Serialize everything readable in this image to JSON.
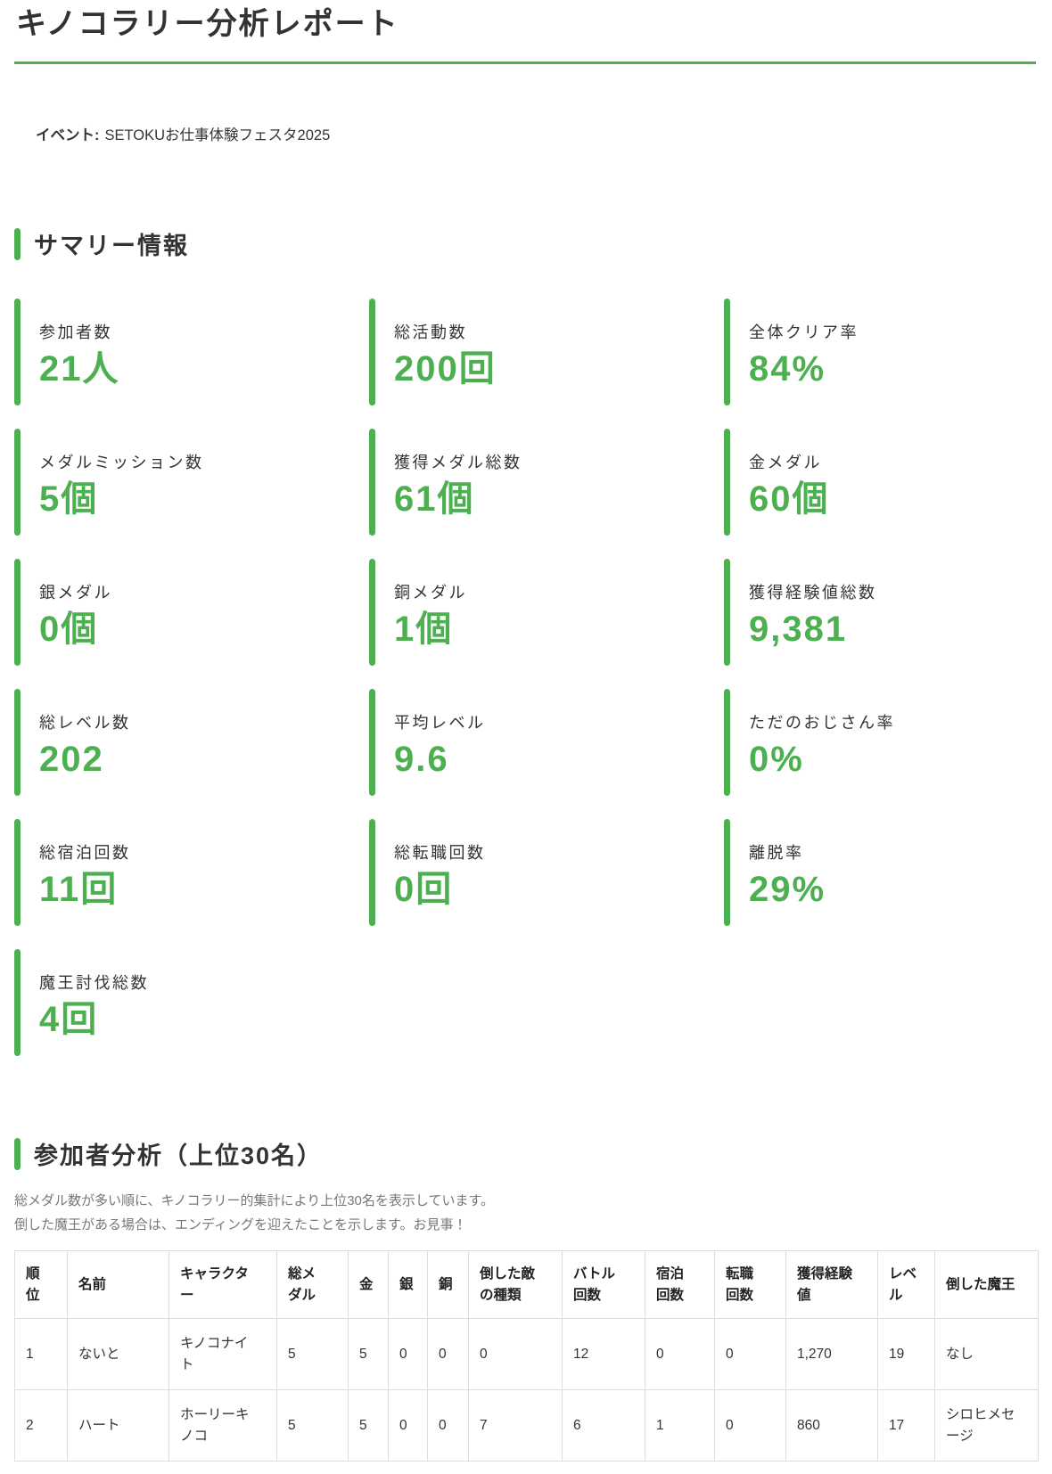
{
  "accent_color": "#4caf50",
  "report": {
    "title": "キノコラリー分析レポート",
    "event_label": "イベント:",
    "event_value": "SETOKUお仕事体験フェスタ2025"
  },
  "summary": {
    "heading": "サマリー情報",
    "cards": [
      {
        "label": "参加者数",
        "value": "21人"
      },
      {
        "label": "総活動数",
        "value": "200回"
      },
      {
        "label": "全体クリア率",
        "value": "84%"
      },
      {
        "label": "メダルミッション数",
        "value": "5個"
      },
      {
        "label": "獲得メダル総数",
        "value": "61個"
      },
      {
        "label": "金メダル",
        "value": "60個"
      },
      {
        "label": "銀メダル",
        "value": "0個"
      },
      {
        "label": "銅メダル",
        "value": "1個"
      },
      {
        "label": "獲得経験値総数",
        "value": "9,381"
      },
      {
        "label": "総レベル数",
        "value": "202"
      },
      {
        "label": "平均レベル",
        "value": "9.6"
      },
      {
        "label": "ただのおじさん率",
        "value": "0%"
      },
      {
        "label": "総宿泊回数",
        "value": "11回"
      },
      {
        "label": "総転職回数",
        "value": "0回"
      },
      {
        "label": "離脱率",
        "value": "29%"
      },
      {
        "label": "魔王討伐総数",
        "value": "4回"
      }
    ]
  },
  "participants": {
    "heading": "参加者分析（上位30名）",
    "description_lines": [
      "総メダル数が多い順に、キノコラリー的集計により上位30名を表示しています。",
      "倒した魔王がある場合は、エンディングを迎えたことを示します。お見事！"
    ],
    "table": {
      "columns": [
        "順\n位",
        "名前",
        "キャラクタ\nー",
        "総メ\nダル",
        "金",
        "銀",
        "銅",
        "倒した敵\nの種類",
        "バトル\n回数",
        "宿泊\n回数",
        "転職\n回数",
        "獲得経験\n値",
        "レベ\nル",
        "倒した魔王"
      ],
      "rows": [
        [
          "1",
          "ないと",
          "キノコナイ\nト",
          "5",
          "5",
          "0",
          "0",
          "0",
          "12",
          "0",
          "0",
          "1,270",
          "19",
          "なし"
        ],
        [
          "2",
          "ハート",
          "ホーリーキ\nノコ",
          "5",
          "5",
          "0",
          "0",
          "7",
          "6",
          "1",
          "0",
          "860",
          "17",
          "シロヒメセ\nージ"
        ]
      ]
    }
  }
}
